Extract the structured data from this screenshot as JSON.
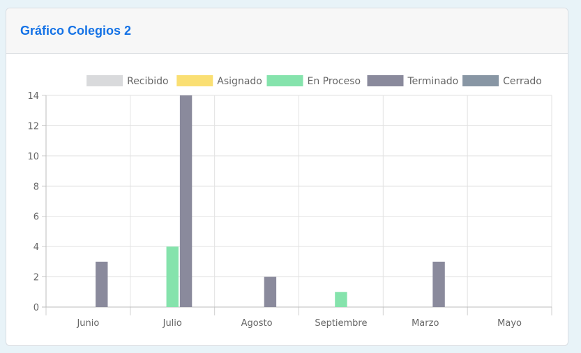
{
  "card": {
    "title": "Gráfico Colegios 2"
  },
  "chart_data": {
    "type": "bar",
    "title": "",
    "xlabel": "",
    "ylabel": "",
    "categories": [
      "Junio",
      "Julio",
      "Agosto",
      "Septiembre",
      "Marzo",
      "Mayo"
    ],
    "ylim": [
      0,
      14
    ],
    "yticks": [
      0,
      2,
      4,
      6,
      8,
      10,
      12,
      14
    ],
    "grid": true,
    "legend_position": "top",
    "series": [
      {
        "name": "Recibido",
        "color": "#d9dadc",
        "values": [
          0,
          0,
          0,
          0,
          0,
          0
        ]
      },
      {
        "name": "Asignado",
        "color": "#fadf73",
        "values": [
          0,
          0,
          0,
          0,
          0,
          0
        ]
      },
      {
        "name": "En Proceso",
        "color": "#85e3ac",
        "values": [
          0,
          4,
          0,
          1,
          0,
          0
        ]
      },
      {
        "name": "Terminado",
        "color": "#8a8a9c",
        "values": [
          3,
          14,
          2,
          0,
          3,
          0
        ]
      },
      {
        "name": "Cerrado",
        "color": "#8896a4",
        "values": [
          0,
          0,
          0,
          0,
          0,
          0
        ]
      }
    ]
  }
}
